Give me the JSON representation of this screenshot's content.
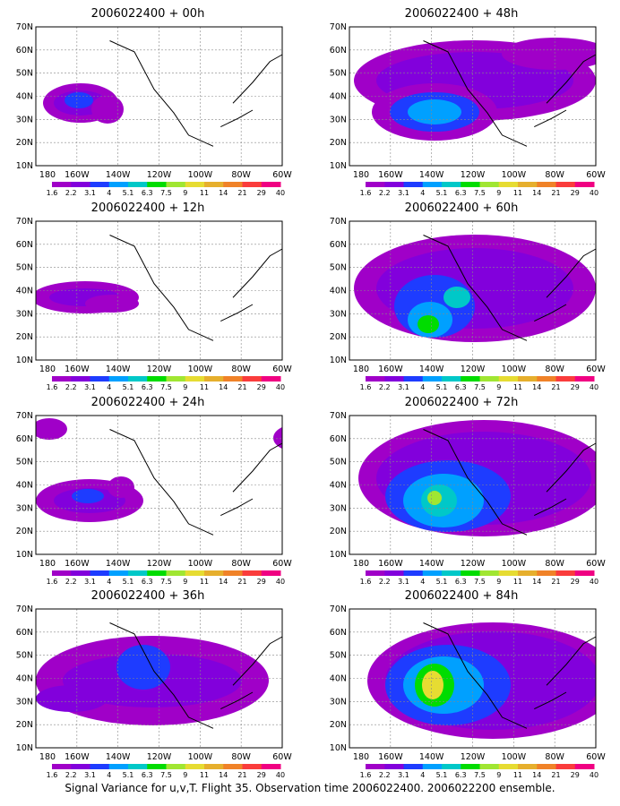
{
  "figure": {
    "caption": "Signal Variance for u,v,T. Flight 35. Observation time 2006022400. 2006022200 ensemble.",
    "lat_labels": [
      "70N",
      "60N",
      "50N",
      "40N",
      "30N",
      "20N",
      "10N"
    ],
    "lon_labels": [
      "180",
      "160W",
      "140W",
      "120W",
      "100W",
      "80W",
      "60W"
    ],
    "colorbar": {
      "labels": [
        "1.6",
        "2.2",
        "3.1",
        "4",
        "5.1",
        "6.3",
        "7.5",
        "9",
        "11",
        "14",
        "21",
        "29",
        "40"
      ],
      "colors": [
        "#a000c8",
        "#8200dc",
        "#1e3cff",
        "#00a0ff",
        "#00c8c8",
        "#00dc00",
        "#a0e632",
        "#e6dc32",
        "#e6af2d",
        "#f08228",
        "#fa3c3c",
        "#f00082"
      ]
    },
    "panels": [
      {
        "title": "2006022400 + 00h"
      },
      {
        "title": "2006022400 + 48h"
      },
      {
        "title": "2006022400 + 12h"
      },
      {
        "title": "2006022400 + 60h"
      },
      {
        "title": "2006022400 + 24h"
      },
      {
        "title": "2006022400 + 72h"
      },
      {
        "title": "2006022400 + 36h"
      },
      {
        "title": "2006022400 + 84h"
      }
    ]
  }
}
